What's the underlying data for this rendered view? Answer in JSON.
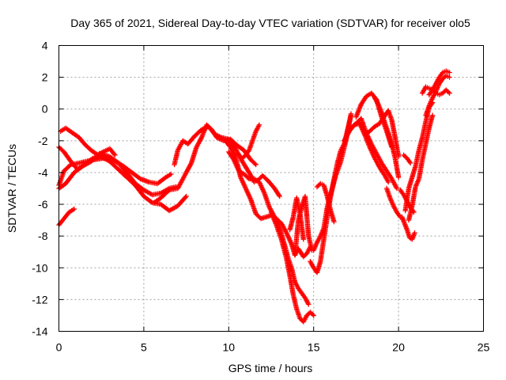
{
  "chart_data": {
    "type": "scatter",
    "title": "Day 365 of 2021, Sidereal Day-to-day VTEC variation (SDTVAR) for receiver olo5",
    "xlabel": "GPS time / hours",
    "ylabel": "SDTVAR / TECUs",
    "xlim": [
      0,
      25
    ],
    "ylim": [
      -14,
      4
    ],
    "xticks": [
      0,
      5,
      10,
      15,
      20,
      25
    ],
    "yticks": [
      4,
      2,
      0,
      -2,
      -4,
      -6,
      -8,
      -10,
      -12,
      -14
    ],
    "grid": true,
    "legend": "none",
    "marker": "plus",
    "color": "#ff0000",
    "series": [
      {
        "x": [
          0.0,
          0.3,
          0.7,
          1.2,
          1.6,
          2.0,
          2.6,
          3.2,
          3.8,
          4.3,
          4.8,
          5.3,
          5.8,
          6.3,
          6.6
        ],
        "y": [
          -4.8,
          -3.9,
          -3.5,
          -3.4,
          -3.3,
          -3.2,
          -3.1,
          -3.2,
          -3.6,
          -4.0,
          -4.4,
          -4.6,
          -4.7,
          -4.3,
          -4.1
        ]
      },
      {
        "x": [
          0.0,
          0.4,
          0.9,
          1.4,
          1.9,
          2.4,
          3.0,
          3.5,
          4.0,
          4.5,
          5.0,
          5.5,
          6.0,
          6.5,
          6.9
        ],
        "y": [
          -5.0,
          -4.7,
          -4.0,
          -3.6,
          -3.3,
          -2.8,
          -3.0,
          -3.4,
          -4.0,
          -4.7,
          -5.1,
          -5.4,
          -5.3,
          -5.0,
          -4.9
        ]
      },
      {
        "x": [
          0.0,
          0.3,
          0.7,
          1.1,
          1.5,
          2.0,
          2.5,
          3.0,
          3.5,
          4.0,
          4.5,
          5.0,
          5.5,
          6.0,
          6.5,
          7.0,
          7.5
        ],
        "y": [
          -2.4,
          -2.7,
          -3.3,
          -3.8,
          -3.5,
          -3.1,
          -3.0,
          -3.3,
          -3.8,
          -4.3,
          -4.8,
          -5.5,
          -5.9,
          -6.0,
          -6.4,
          -6.1,
          -5.5
        ]
      },
      {
        "x": [
          0.1,
          0.4,
          0.8,
          1.2,
          1.5,
          1.9,
          2.3,
          2.6,
          3.0,
          3.3
        ],
        "y": [
          -1.4,
          -1.2,
          -1.5,
          -1.8,
          -2.2,
          -2.6,
          -2.9,
          -2.7,
          -2.5,
          -2.9
        ]
      },
      {
        "x": [
          0.0,
          0.3,
          0.6,
          0.9
        ],
        "y": [
          -7.3,
          -6.9,
          -6.5,
          -6.3
        ]
      },
      {
        "x": [
          6.8,
          7.0,
          7.3,
          7.6,
          8.0,
          8.4,
          8.8,
          9.2,
          9.6,
          10.0,
          10.4,
          10.8,
          11.2,
          11.5,
          11.7,
          12.0,
          12.3,
          12.7,
          13.0
        ],
        "y": [
          -3.5,
          -2.6,
          -2.0,
          -2.2,
          -1.7,
          -1.3,
          -1.1,
          -1.6,
          -1.8,
          -1.9,
          -2.5,
          -3.3,
          -4.0,
          -4.6,
          -4.5,
          -4.2,
          -4.5,
          -5.0,
          -5.5
        ]
      },
      {
        "x": [
          5.6,
          6.0,
          6.5,
          7.0,
          7.3,
          7.5,
          7.8,
          8.1,
          8.4,
          8.7,
          9.0,
          9.3,
          9.7,
          10.1,
          10.5,
          10.9,
          11.3,
          11.6
        ],
        "y": [
          -5.9,
          -5.6,
          -5.1,
          -5.0,
          -4.4,
          -4.0,
          -3.4,
          -2.4,
          -1.8,
          -1.0,
          -1.3,
          -1.8,
          -2.0,
          -1.9,
          -2.3,
          -2.6,
          -3.2,
          -3.5
        ]
      },
      {
        "x": [
          10.5,
          10.8,
          11.0,
          11.2,
          11.4,
          11.6,
          11.8
        ],
        "y": [
          -2.8,
          -3.1,
          -2.9,
          -2.6,
          -2.0,
          -1.4,
          -1.0
        ]
      },
      {
        "x": [
          9.8,
          10.1,
          10.4,
          10.7,
          11.0,
          11.3,
          11.6,
          11.9,
          12.2,
          12.5,
          12.8,
          13.1,
          13.4,
          13.7,
          13.9,
          14.1,
          14.4,
          14.6,
          14.8
        ],
        "y": [
          -2.0,
          -2.4,
          -3.0,
          -4.3,
          -5.0,
          -5.7,
          -6.6,
          -6.9,
          -6.8,
          -6.7,
          -6.9,
          -7.2,
          -7.8,
          -8.5,
          -9.2,
          -8.8,
          -9.3,
          -9.1,
          -8.7
        ]
      },
      {
        "x": [
          10.0,
          10.3,
          10.6,
          10.9,
          11.2,
          11.5,
          11.8,
          12.1,
          12.4,
          12.7,
          13.0,
          13.3,
          13.5,
          13.7,
          13.9,
          14.1,
          14.3,
          14.5,
          14.7
        ],
        "y": [
          -2.7,
          -3.2,
          -3.9,
          -4.1,
          -4.4,
          -4.4,
          -4.6,
          -5.3,
          -6.2,
          -6.8,
          -7.5,
          -8.6,
          -9.4,
          -10.0,
          -10.9,
          -11.3,
          -11.6,
          -11.9,
          -12.3
        ]
      },
      {
        "x": [
          12.5,
          12.8,
          13.1,
          13.4,
          13.6,
          13.8,
          14.0,
          14.2,
          14.4,
          14.6,
          14.8,
          15.0
        ],
        "y": [
          -6.5,
          -7.3,
          -8.2,
          -9.4,
          -10.5,
          -11.7,
          -12.6,
          -13.2,
          -13.4,
          -13.0,
          -12.8,
          -13.0
        ]
      },
      {
        "x": [
          13.6,
          13.8,
          14.0,
          14.2,
          14.4
        ],
        "y": [
          -7.6,
          -6.8,
          -5.6,
          -6.6,
          -8.2
        ]
      },
      {
        "x": [
          13.9,
          14.1,
          14.3,
          14.5,
          14.7,
          14.9
        ],
        "y": [
          -9.2,
          -7.0,
          -6.2,
          -5.5,
          -8.0,
          -8.9
        ]
      },
      {
        "x": [
          14.8,
          15.0,
          15.2,
          15.4,
          15.6,
          15.8,
          16.0,
          16.2,
          16.4,
          16.6,
          16.8,
          17.0,
          17.2
        ],
        "y": [
          -9.6,
          -10.0,
          -10.3,
          -9.6,
          -8.2,
          -6.8,
          -5.5,
          -4.4,
          -3.4,
          -2.6,
          -2.2,
          -1.3,
          -0.4
        ]
      },
      {
        "x": [
          15.0,
          15.2,
          15.4,
          15.6,
          15.8,
          16.0,
          16.3,
          16.6,
          16.9,
          17.2
        ],
        "y": [
          -8.9,
          -8.4,
          -8.0,
          -7.5,
          -6.2,
          -5.4,
          -4.2,
          -3.3,
          -2.0,
          -0.3
        ]
      },
      {
        "x": [
          15.2,
          15.4,
          15.6,
          15.8,
          16.0,
          16.2
        ],
        "y": [
          -4.9,
          -4.7,
          -4.8,
          -5.5,
          -6.4,
          -7.1
        ]
      },
      {
        "x": [
          16.8,
          17.1,
          17.4,
          17.7,
          18.0,
          18.3,
          18.6,
          18.9,
          19.2,
          19.4
        ],
        "y": [
          -2.0,
          -1.4,
          -1.0,
          -0.9,
          -1.6,
          -2.4,
          -3.1,
          -3.7,
          -4.2,
          -4.6
        ]
      },
      {
        "x": [
          17.2,
          17.5,
          17.8,
          18.1,
          18.4,
          18.7,
          19.0,
          19.3,
          19.6,
          19.9
        ],
        "y": [
          -1.2,
          -0.9,
          -0.6,
          -1.5,
          -2.2,
          -2.8,
          -3.4,
          -3.9,
          -4.4,
          -5.0
        ]
      },
      {
        "x": [
          17.5,
          17.8,
          18.1,
          18.4,
          18.7,
          19.0,
          19.3,
          19.6
        ],
        "y": [
          -0.5,
          0.3,
          0.8,
          1.0,
          0.6,
          -0.5,
          -1.4,
          -2.4
        ]
      },
      {
        "x": [
          18.0,
          18.3,
          18.6,
          18.9,
          19.2,
          19.4,
          19.6,
          19.8,
          20.0
        ],
        "y": [
          -1.6,
          -1.4,
          -1.1,
          -0.9,
          -0.4,
          -0.1,
          -0.7,
          -1.8,
          -3.0
        ]
      },
      {
        "x": [
          18.6,
          18.8,
          19.0,
          19.2,
          19.4,
          19.6,
          19.8,
          20.0
        ],
        "y": [
          0.7,
          0.3,
          -0.2,
          -0.9,
          -1.5,
          -2.2,
          -3.1,
          -4.3
        ]
      },
      {
        "x": [
          19.3,
          19.5,
          19.7,
          19.9,
          20.1
        ],
        "y": [
          -5.0,
          -5.6,
          -6.1,
          -6.5,
          -6.8
        ]
      },
      {
        "x": [
          20.1,
          20.3,
          20.5,
          20.7,
          20.9
        ],
        "y": [
          -5.1,
          -5.4,
          -5.8,
          -6.2,
          -6.5
        ]
      },
      {
        "x": [
          20.2,
          20.35,
          20.5,
          20.65,
          20.8,
          20.95
        ],
        "y": [
          -6.8,
          -7.2,
          -7.6,
          -8.1,
          -8.2,
          -7.8
        ]
      },
      {
        "x": [
          20.4,
          20.6,
          20.8,
          21.0,
          21.2,
          21.4,
          21.6,
          21.8,
          22.0
        ],
        "y": [
          -6.4,
          -5.0,
          -4.3,
          -3.6,
          -2.6,
          -1.8,
          -0.8,
          0.1,
          0.4
        ]
      },
      {
        "x": [
          20.6,
          20.8,
          21.0,
          21.2,
          21.4,
          21.6,
          21.8,
          22.0
        ],
        "y": [
          -7.0,
          -6.1,
          -4.9,
          -4.4,
          -3.2,
          -2.2,
          -1.2,
          -0.4
        ]
      },
      {
        "x": [
          20.3,
          20.5,
          20.7
        ],
        "y": [
          -2.9,
          -3.1,
          -3.4
        ]
      },
      {
        "x": [
          21.4,
          21.6,
          21.8,
          22.0,
          22.2,
          22.4,
          22.6,
          22.8,
          23.0
        ],
        "y": [
          1.0,
          1.4,
          1.3,
          1.2,
          1.0,
          0.9,
          1.0,
          1.2,
          1.0
        ]
      },
      {
        "x": [
          21.6,
          21.8,
          22.0,
          22.2,
          22.4,
          22.6,
          22.8,
          23.0
        ],
        "y": [
          -0.4,
          0.2,
          0.7,
          1.1,
          1.6,
          1.9,
          2.1,
          2.0
        ]
      },
      {
        "x": [
          21.8,
          22.0,
          22.2,
          22.4,
          22.6,
          22.8,
          23.0
        ],
        "y": [
          0.9,
          1.2,
          1.6,
          2.0,
          2.3,
          2.4,
          2.3
        ]
      }
    ]
  }
}
